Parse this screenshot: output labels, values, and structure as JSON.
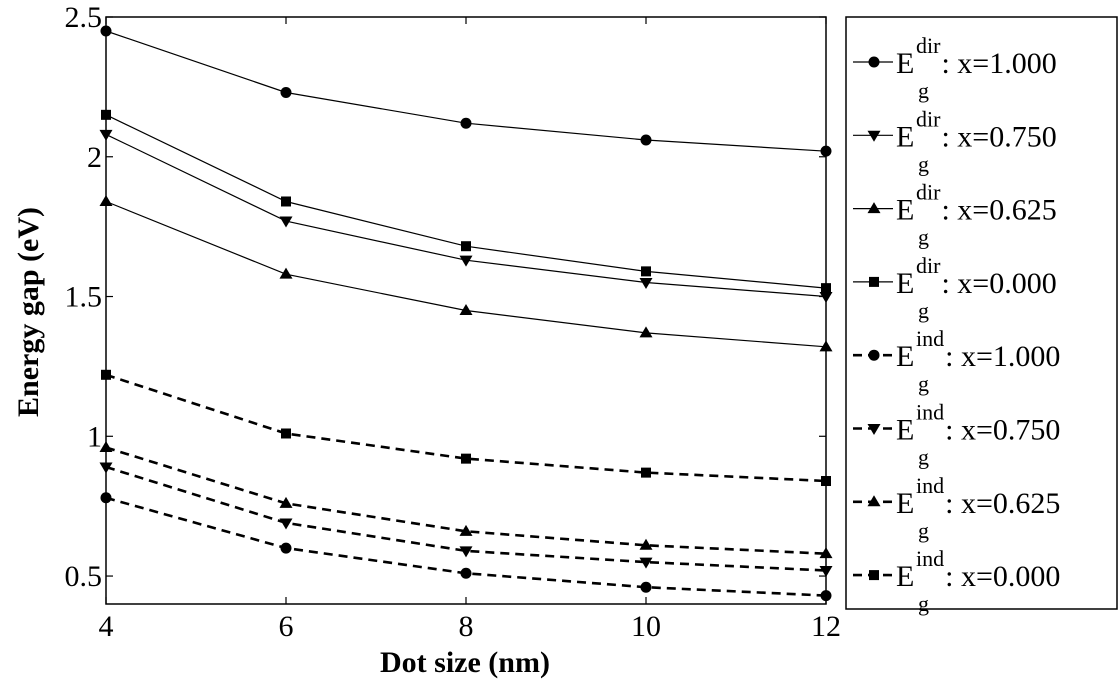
{
  "chart_data": {
    "type": "line",
    "xlabel": "Dot size (nm)",
    "ylabel": "Energy gap (eV)",
    "xlim": [
      4,
      12
    ],
    "ylim": [
      0.4,
      2.5
    ],
    "xticks": [
      4,
      6,
      8,
      10,
      12
    ],
    "yticks": [
      0.5,
      1,
      1.5,
      2,
      2.5
    ],
    "ytick_labels": [
      "0.5",
      "1",
      "1.5",
      "2",
      "2.5"
    ],
    "grid": false,
    "legend_position": "right",
    "x": [
      4,
      6,
      8,
      10,
      12
    ],
    "series": [
      {
        "symbol": "E",
        "sup": "dir",
        "sub": "g",
        "suffix": ": x=1.000",
        "marker": "circle",
        "line": "solid",
        "values": [
          2.45,
          2.23,
          2.12,
          2.06,
          2.02
        ]
      },
      {
        "symbol": "E",
        "sup": "dir",
        "sub": "g",
        "suffix": ": x=0.750",
        "marker": "triangle-down",
        "line": "solid",
        "values": [
          2.08,
          1.77,
          1.63,
          1.55,
          1.5
        ]
      },
      {
        "symbol": "E",
        "sup": "dir",
        "sub": "g",
        "suffix": ": x=0.625",
        "marker": "triangle-up",
        "line": "solid",
        "values": [
          1.84,
          1.58,
          1.45,
          1.37,
          1.32
        ]
      },
      {
        "symbol": "E",
        "sup": "dir",
        "sub": "g",
        "suffix": ": x=0.000",
        "marker": "square",
        "line": "solid",
        "values": [
          2.15,
          1.84,
          1.68,
          1.59,
          1.53
        ]
      },
      {
        "symbol": "E",
        "sup": "ind",
        "sub": "g",
        "suffix": ": x=1.000",
        "marker": "circle",
        "line": "dashed",
        "values": [
          0.78,
          0.6,
          0.51,
          0.46,
          0.43
        ]
      },
      {
        "symbol": "E",
        "sup": "ind",
        "sub": "g",
        "suffix": ": x=0.750",
        "marker": "triangle-down",
        "line": "dashed",
        "values": [
          0.89,
          0.69,
          0.59,
          0.55,
          0.52
        ]
      },
      {
        "symbol": "E",
        "sup": "ind",
        "sub": "g",
        "suffix": ": x=0.625",
        "marker": "triangle-up",
        "line": "dashed",
        "values": [
          0.96,
          0.76,
          0.66,
          0.61,
          0.58
        ]
      },
      {
        "symbol": "E",
        "sup": "ind",
        "sub": "g",
        "suffix": ": x=0.000",
        "marker": "square",
        "line": "dashed",
        "values": [
          1.22,
          1.01,
          0.92,
          0.87,
          0.84
        ]
      }
    ],
    "colors": {
      "line": "#000000",
      "background": "#ffffff"
    }
  }
}
